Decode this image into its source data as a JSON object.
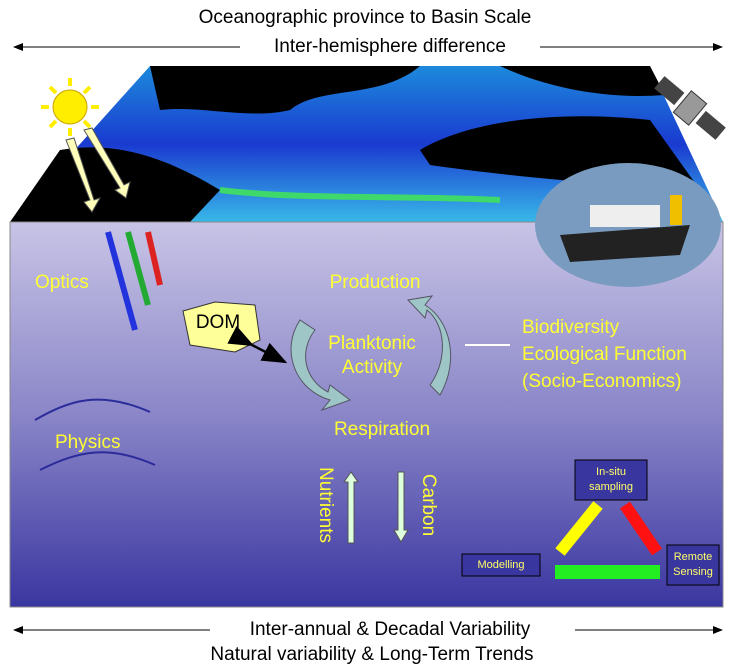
{
  "header": {
    "scale": "Oceanographic province to Basin Scale",
    "difference": "Inter-hemisphere difference"
  },
  "ocean": {
    "optics": "Optics",
    "dom": "DOM",
    "production": "Production",
    "activity": [
      "Planktonic",
      "Activity"
    ],
    "respiration": "Respiration",
    "impacts": [
      "Biodiversity",
      "Ecological Function",
      "(Socio-Economics)"
    ],
    "physics": "Physics",
    "nutrients": "Nutrients",
    "carbon": "Carbon",
    "methods": {
      "insitu": [
        "In-situ",
        "sampling"
      ],
      "modelling": "Modelling",
      "remote": [
        "Remote",
        "Sensing"
      ]
    }
  },
  "footer": {
    "variability": "Inter-annual & Decadal Variability",
    "trends": "Natural variability & Long-Term Trends"
  }
}
